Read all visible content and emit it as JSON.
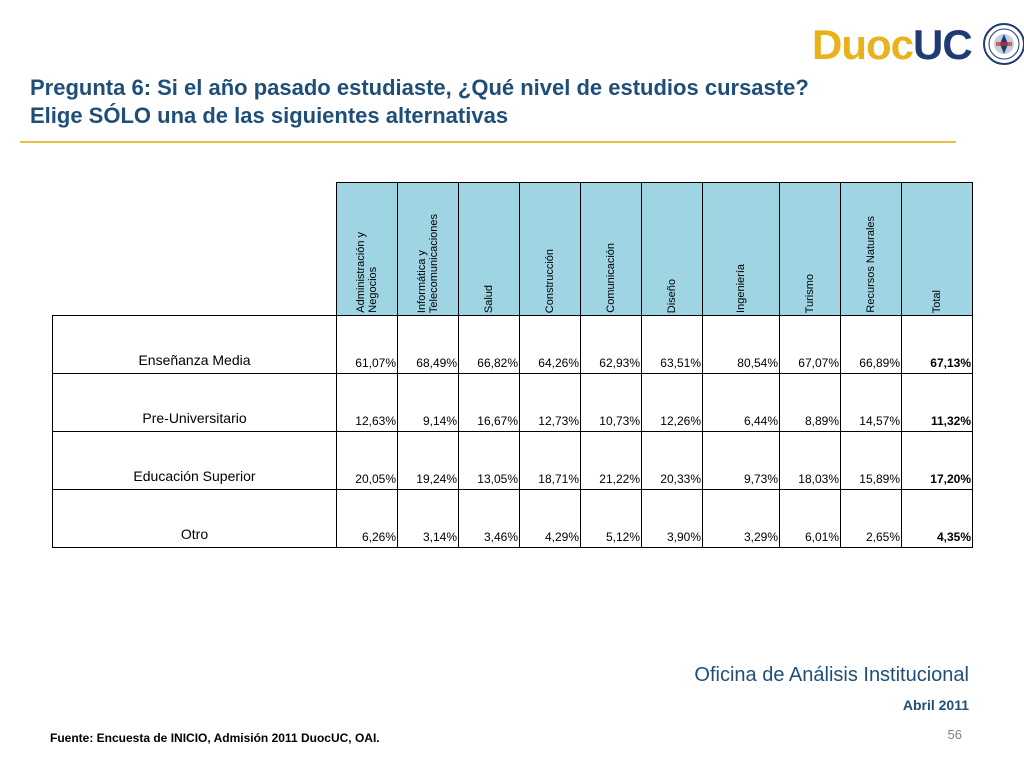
{
  "title": {
    "line1": "Pregunta 6: Si el año pasado estudiaste, ¿Qué nivel de estudios cursaste?",
    "line2": "Elige SÓLO una de las siguientes alternativas"
  },
  "logo": {
    "part1": "Duoc",
    "part2": "UC"
  },
  "table": {
    "headers": [
      "Administración y\nNegocios",
      "Informática y\nTelecomunicaciones",
      "Salud",
      "Construcción",
      "Comunicación",
      "Diseño",
      "Ingeniería",
      "Turismo",
      "Recursos Naturales",
      "Total"
    ],
    "rows": [
      {
        "label": "Enseñanza Media",
        "values": [
          "61,07%",
          "68,49%",
          "66,82%",
          "64,26%",
          "62,93%",
          "63,51%",
          "80,54%",
          "67,07%",
          "66,89%",
          "67,13%"
        ]
      },
      {
        "label": "Pre-Universitario",
        "values": [
          "12,63%",
          "9,14%",
          "16,67%",
          "12,73%",
          "10,73%",
          "12,26%",
          "6,44%",
          "8,89%",
          "14,57%",
          "11,32%"
        ]
      },
      {
        "label": "Educación Superior",
        "values": [
          "20,05%",
          "19,24%",
          "13,05%",
          "18,71%",
          "21,22%",
          "20,33%",
          "9,73%",
          "18,03%",
          "15,89%",
          "17,20%"
        ]
      },
      {
        "label": "Otro",
        "values": [
          "6,26%",
          "3,14%",
          "3,46%",
          "4,29%",
          "5,12%",
          "3,90%",
          "3,29%",
          "6,01%",
          "2,65%",
          "4,35%"
        ]
      }
    ]
  },
  "footer": {
    "office": "Oficina de Análisis Institucional",
    "date": "Abril 2011",
    "source": "Fuente: Encuesta de INICIO, Admisión 2011 DuocUC, OAI.",
    "page": "56"
  },
  "colors": {
    "title": "#1f4e79",
    "rule": "#e8c044",
    "header_bg": "#9fd4e3",
    "logo_duoc": "#e8b21c",
    "logo_uc": "#1f3b73"
  }
}
